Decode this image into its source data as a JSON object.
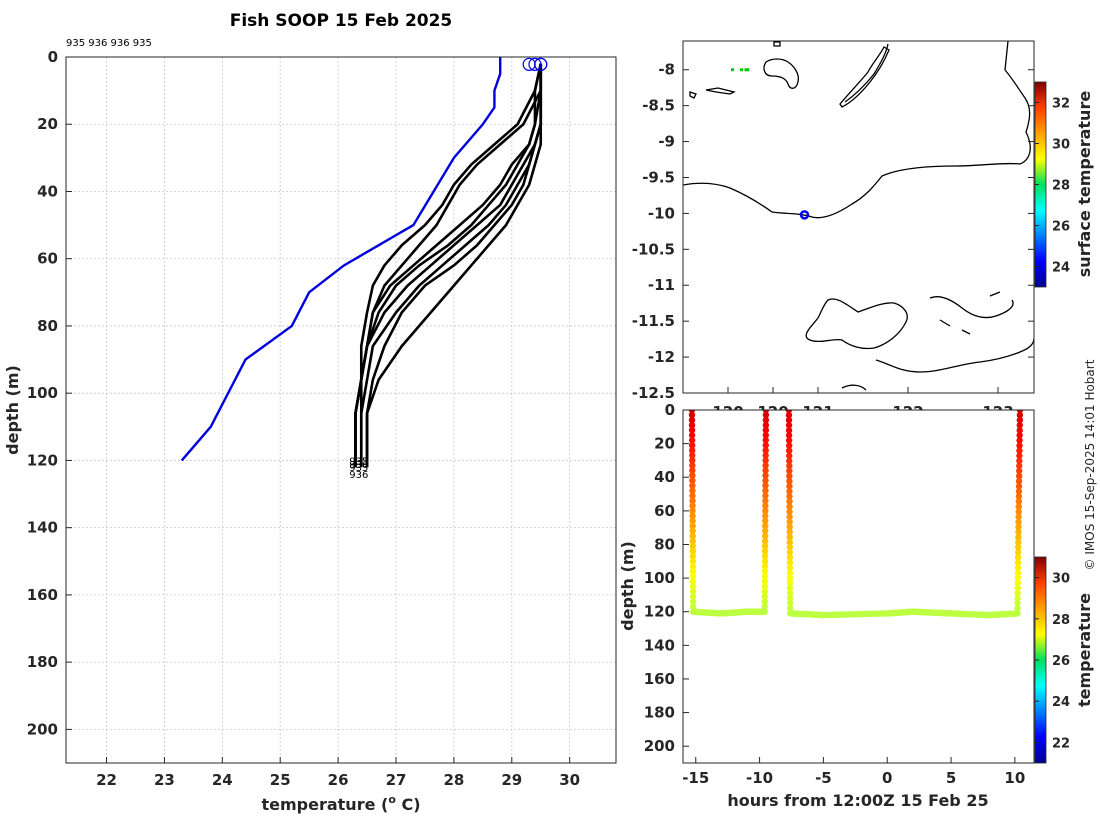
{
  "figure": {
    "title": "Fish SOOP 15 Feb 2025",
    "profile_ids_label": "935 936 936 935",
    "copyright": "© IMOS 15-Sep-2025 14:01 Hobart"
  },
  "chart_data": [
    {
      "type": "line",
      "name": "temperature-profiles",
      "title": "Fish SOOP 15 Feb 2025",
      "xlabel": "temperature (° C)",
      "xlabel_parts": [
        "temperature (",
        "o",
        " C)"
      ],
      "ylabel": "depth (m)",
      "xlim": [
        21.3,
        30.8
      ],
      "ylim": [
        210,
        0
      ],
      "xticks": [
        22,
        23,
        24,
        25,
        26,
        27,
        28,
        29,
        30
      ],
      "yticks": [
        0,
        20,
        40,
        60,
        80,
        100,
        120,
        140,
        160,
        180,
        200
      ],
      "grid": true,
      "reference_series": {
        "name": "reference-profile",
        "color": "#0000dd",
        "x": [
          28.8,
          28.8,
          28.7,
          28.7,
          28.5,
          28.0,
          27.3,
          26.1,
          25.5,
          25.2,
          24.4,
          23.8,
          23.3
        ],
        "y": [
          0,
          5,
          10,
          15,
          20,
          30,
          50,
          62,
          70,
          80,
          90,
          110,
          120
        ]
      },
      "series": [
        {
          "name": "profile-1",
          "x": [
            29.5,
            29.4,
            29.4,
            29.3,
            29.0,
            28.8,
            28.5,
            28.1,
            27.7,
            27.3,
            26.9,
            26.6,
            26.5,
            26.4,
            26.3,
            26.3,
            26.3
          ],
          "y": [
            2,
            10,
            20,
            26,
            32,
            38,
            44,
            50,
            56,
            62,
            68,
            76,
            86,
            96,
            106,
            116,
            122
          ]
        },
        {
          "name": "profile-2",
          "x": [
            29.5,
            29.5,
            29.5,
            29.4,
            29.3,
            29.1,
            28.9,
            28.6,
            28.2,
            27.8,
            27.4,
            27.0,
            26.6,
            26.5,
            26.4,
            26.4,
            26.4
          ],
          "y": [
            2,
            10,
            20,
            26,
            32,
            38,
            44,
            50,
            56,
            62,
            68,
            76,
            86,
            96,
            106,
            116,
            122
          ]
        },
        {
          "name": "profile-3",
          "x": [
            29.5,
            29.5,
            29.5,
            29.4,
            29.2,
            29.0,
            28.8,
            28.4,
            28.0,
            27.6,
            27.2,
            26.8,
            26.5,
            26.4,
            26.3,
            26.3,
            26.3
          ],
          "y": [
            2,
            10,
            20,
            26,
            32,
            38,
            44,
            50,
            56,
            62,
            68,
            76,
            86,
            96,
            106,
            116,
            122
          ]
        },
        {
          "name": "profile-4",
          "x": [
            29.5,
            29.5,
            29.5,
            29.5,
            29.4,
            29.3,
            29.1,
            28.9,
            28.6,
            28.3,
            28.0,
            27.6,
            27.1,
            26.7,
            26.5,
            26.5,
            26.5
          ],
          "y": [
            2,
            10,
            20,
            26,
            32,
            38,
            44,
            50,
            56,
            62,
            68,
            76,
            86,
            96,
            106,
            116,
            122
          ]
        },
        {
          "name": "profile-5",
          "x": [
            29.5,
            29.4,
            29.1,
            28.7,
            28.3,
            28.0,
            27.8,
            27.5,
            27.1,
            26.8,
            26.6,
            26.5,
            26.4,
            26.4,
            26.3,
            26.3,
            26.3
          ],
          "y": [
            2,
            10,
            20,
            26,
            32,
            38,
            44,
            50,
            56,
            62,
            68,
            76,
            86,
            96,
            106,
            116,
            122
          ]
        },
        {
          "name": "profile-6",
          "x": [
            29.5,
            29.5,
            29.2,
            28.8,
            28.4,
            28.1,
            27.9,
            27.7,
            27.4,
            27.1,
            26.8,
            26.6,
            26.5,
            26.4,
            26.4,
            26.4,
            26.4
          ],
          "y": [
            2,
            10,
            20,
            26,
            32,
            38,
            44,
            50,
            56,
            62,
            68,
            76,
            86,
            96,
            106,
            116,
            122
          ]
        },
        {
          "name": "profile-7",
          "x": [
            29.5,
            29.5,
            29.5,
            29.4,
            29.3,
            29.2,
            29.0,
            28.7,
            28.4,
            28.0,
            27.5,
            27.1,
            26.8,
            26.6,
            26.5,
            26.5,
            26.5
          ],
          "y": [
            2,
            10,
            20,
            26,
            32,
            38,
            44,
            50,
            56,
            62,
            68,
            76,
            86,
            96,
            106,
            116,
            122
          ]
        },
        {
          "name": "profile-8",
          "x": [
            29.5,
            29.5,
            29.4,
            29.3,
            29.1,
            28.9,
            28.6,
            28.3,
            27.9,
            27.4,
            27.0,
            26.7,
            26.5,
            26.4,
            26.3,
            26.3,
            26.3
          ],
          "y": [
            2,
            10,
            20,
            26,
            32,
            38,
            44,
            50,
            56,
            62,
            68,
            76,
            86,
            96,
            106,
            116,
            122
          ]
        }
      ],
      "surface_markers": {
        "color": "#0000dd",
        "x": [
          29.3,
          29.4,
          29.5,
          29.5
        ],
        "y": [
          1,
          1,
          1,
          1
        ]
      },
      "end_labels": [
        {
          "text": "935",
          "x": 26.4,
          "y": 120
        },
        {
          "text": "936",
          "x": 26.4,
          "y": 121
        },
        {
          "text": "935",
          "x": 26.4,
          "y": 122
        },
        {
          "text": "936",
          "x": 26.4,
          "y": 124
        }
      ]
    },
    {
      "type": "scatter",
      "name": "location-map",
      "xlim": [
        119.5,
        123.4
      ],
      "ylim": [
        -12.5,
        -7.6
      ],
      "xticks": [
        120,
        120.5,
        121,
        122,
        123
      ],
      "xtick_labels": [
        "120",
        "120",
        "121",
        "122",
        "123"
      ],
      "yticks": [
        -8,
        -8.5,
        -9,
        -9.5,
        -10,
        -10.5,
        -11,
        -11.5,
        -12,
        -12.5
      ],
      "points": [
        {
          "name": "current-position",
          "lon": 120.85,
          "lat": -10.02,
          "color": "#0000ee"
        },
        {
          "name": "track-points",
          "lon": [
            120.05,
            120.15,
            120.2,
            120.22
          ],
          "lat": [
            -8.0,
            -8.0,
            -8.0,
            -8.0
          ],
          "color": "#00cc00"
        }
      ],
      "colorbar": {
        "label": "surface temperature",
        "range": [
          23,
          33
        ],
        "ticks": [
          24,
          26,
          28,
          30,
          32
        ]
      }
    },
    {
      "type": "scatter",
      "name": "depth-time-section",
      "xlabel": "hours from 12:00Z 15 Feb 25",
      "ylabel": "depth (m)",
      "xlim": [
        -16,
        11.5
      ],
      "ylim": [
        210,
        0
      ],
      "xticks": [
        -15,
        -10,
        -5,
        0,
        5,
        10
      ],
      "yticks": [
        0,
        20,
        40,
        60,
        80,
        100,
        120,
        140,
        160,
        180,
        200
      ],
      "casts": [
        {
          "x": [
            -15.3,
            -15.2,
            -13,
            -11,
            -9.6,
            -9.5
          ],
          "y": [
            0,
            120,
            121,
            120,
            120,
            0
          ]
        },
        {
          "x": [
            -7.7,
            -7.6,
            -5,
            0,
            2,
            5,
            8,
            10.2,
            10.4
          ],
          "y": [
            0,
            121,
            122,
            121,
            120,
            121,
            122,
            121,
            0
          ]
        }
      ],
      "colorbar": {
        "label": "temperature",
        "range": [
          21,
          31
        ],
        "ticks": [
          22,
          24,
          26,
          28,
          30
        ]
      }
    }
  ]
}
